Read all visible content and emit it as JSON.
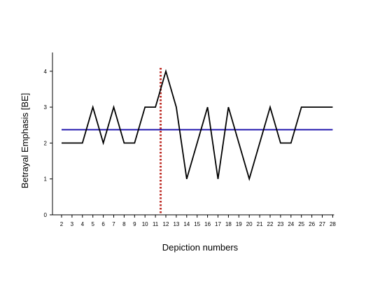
{
  "chart_data": {
    "type": "line",
    "xlabel": "Depiction numbers",
    "ylabel": "Betrayal Emphasis [BE]",
    "xlim": [
      1,
      28
    ],
    "ylim": [
      0,
      4.5
    ],
    "x_ticks": [
      2,
      3,
      4,
      5,
      6,
      7,
      8,
      9,
      10,
      11,
      12,
      13,
      14,
      15,
      16,
      17,
      18,
      19,
      20,
      21,
      22,
      23,
      24,
      25,
      26,
      27,
      28
    ],
    "y_ticks": [
      0,
      1,
      2,
      3,
      4
    ],
    "grid": false,
    "series": [
      {
        "color": "#000000",
        "x": [
          2,
          3,
          4,
          5,
          6,
          7,
          8,
          9,
          10,
          11,
          12,
          13,
          14,
          15,
          16,
          17,
          18,
          19,
          20,
          21,
          22,
          23,
          24,
          25,
          28
        ],
        "values": [
          2,
          2,
          2,
          3,
          2,
          3,
          2,
          2,
          3,
          3,
          4,
          3,
          1,
          2,
          3,
          1,
          3,
          2,
          1,
          2,
          3,
          2,
          2,
          3,
          3
        ]
      }
    ],
    "reference_lines": [
      {
        "orientation": "horizontal",
        "value": 2.37,
        "color": "#2a1fb0",
        "x_range": [
          2,
          28
        ]
      },
      {
        "orientation": "vertical",
        "value": 11.5,
        "color": "#c0332c",
        "style": "dotted"
      }
    ]
  }
}
